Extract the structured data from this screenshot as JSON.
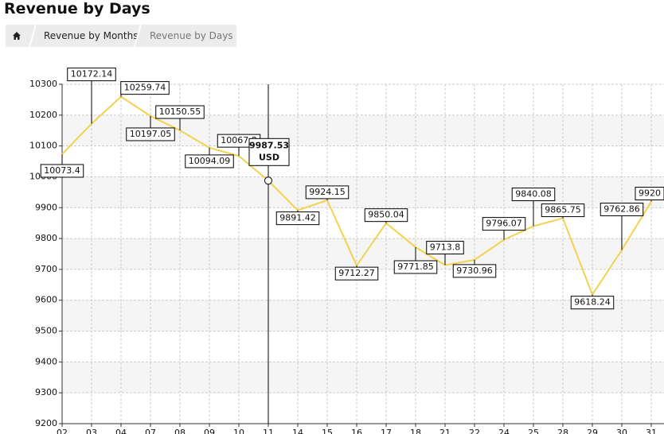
{
  "header": {
    "title": "Revenue by Days"
  },
  "breadcrumb": [
    "Revenue by Months",
    "Revenue by Days"
  ],
  "chart_data": {
    "type": "line",
    "categories": [
      "02",
      "03",
      "04",
      "07",
      "08",
      "09",
      "10",
      "11",
      "14",
      "15",
      "16",
      "17",
      "18",
      "21",
      "22",
      "24",
      "25",
      "28",
      "29",
      "30",
      "31"
    ],
    "values": [
      10073.4,
      10172.14,
      10259.74,
      10197.05,
      10150.55,
      10094.09,
      10067.8,
      9987.53,
      9891.42,
      9924.15,
      9712.27,
      9850.04,
      9771.85,
      9713.8,
      9730.96,
      9796.07,
      9840.08,
      9865.75,
      9618.24,
      9762.86,
      9920
    ],
    "color": "#f2d24e",
    "ylim": [
      9200,
      10300
    ],
    "yticks": [
      9200,
      9300,
      9400,
      9500,
      9600,
      9700,
      9800,
      9900,
      10000,
      10100,
      10200,
      10300
    ],
    "grid": true,
    "tooltip": {
      "index": 7,
      "unit": "USD"
    }
  }
}
